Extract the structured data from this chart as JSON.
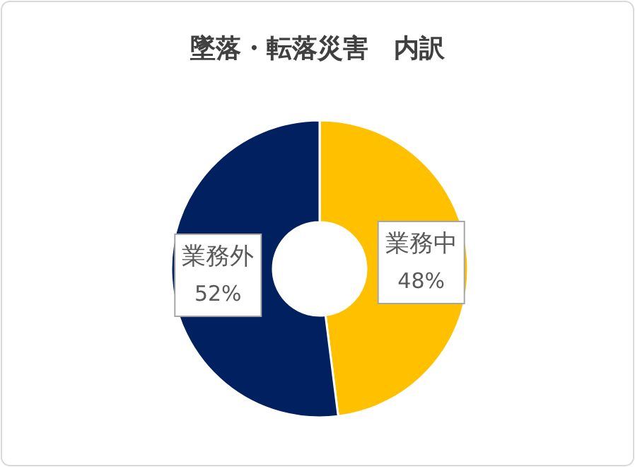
{
  "chart_data": {
    "type": "donut",
    "title": "墜落・転落災害　内訳",
    "categories": [
      "業務中",
      "業務外"
    ],
    "values": [
      48,
      52
    ],
    "colors": [
      "#ffc000",
      "#002060"
    ],
    "value_labels": [
      "48%",
      "52%"
    ]
  }
}
